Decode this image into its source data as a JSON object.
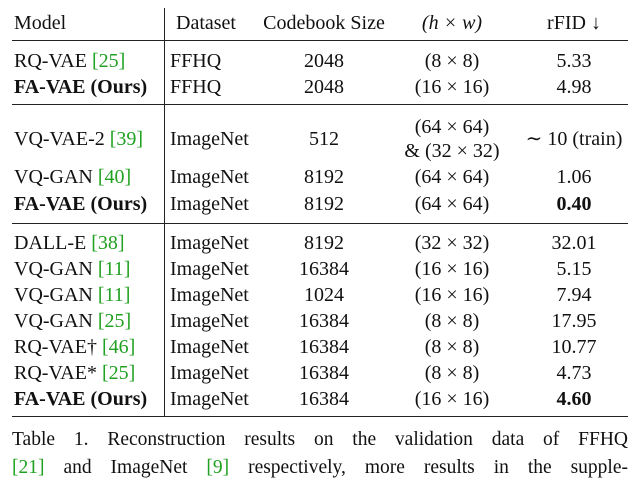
{
  "header": {
    "model": "Model",
    "dataset": "Dataset",
    "codebook": "Codebook Size",
    "hw": "(h × w)",
    "rfid": "rFID ↓"
  },
  "groups": [
    {
      "rows": [
        {
          "model": "RQ-VAE",
          "cite": "[25]",
          "bold": false,
          "dataset": "FFHQ",
          "codebook": "2048",
          "hw": "(8 × 8)",
          "rfid": "5.33",
          "rfid_bold": false
        },
        {
          "model": "FA-VAE (Ours)",
          "cite": "",
          "bold": true,
          "dataset": "FFHQ",
          "codebook": "2048",
          "hw": "(16 × 16)",
          "rfid": "4.98",
          "rfid_bold": false
        }
      ]
    },
    {
      "rows": [
        {
          "model": "VQ-VAE-2",
          "cite": "[39]",
          "bold": false,
          "dataset": "ImageNet",
          "codebook": "512",
          "hw": "(64 × 64)",
          "hw2": "& (32 × 32)",
          "rfid": "∼ 10 (train)",
          "rfid_bold": false
        },
        {
          "model": "VQ-GAN",
          "cite": "[40]",
          "bold": false,
          "dataset": "ImageNet",
          "codebook": "8192",
          "hw": "(64 × 64)",
          "rfid": "1.06",
          "rfid_bold": false
        },
        {
          "model": "FA-VAE (Ours)",
          "cite": "",
          "bold": true,
          "dataset": "ImageNet",
          "codebook": "8192",
          "hw": "(64 × 64)",
          "rfid": "0.40",
          "rfid_bold": true
        }
      ]
    },
    {
      "rows": [
        {
          "model": "DALL-E",
          "cite": "[38]",
          "bold": false,
          "dataset": "ImageNet",
          "codebook": "8192",
          "hw": "(32 × 32)",
          "rfid": "32.01",
          "rfid_bold": false
        },
        {
          "model": "VQ-GAN",
          "cite": "[11]",
          "bold": false,
          "dataset": "ImageNet",
          "codebook": "16384",
          "hw": "(16 × 16)",
          "rfid": "5.15",
          "rfid_bold": false
        },
        {
          "model": "VQ-GAN",
          "cite": "[11]",
          "bold": false,
          "dataset": "ImageNet",
          "codebook": "1024",
          "hw": "(16 × 16)",
          "rfid": "7.94",
          "rfid_bold": false
        },
        {
          "model": "VQ-GAN",
          "cite": "[25]",
          "bold": false,
          "dataset": "ImageNet",
          "codebook": "16384",
          "hw": "(8 × 8)",
          "rfid": "17.95",
          "rfid_bold": false
        },
        {
          "model": "RQ-VAE†",
          "cite": "[46]",
          "bold": false,
          "dataset": "ImageNet",
          "codebook": "16384",
          "hw": "(8 × 8)",
          "rfid": "10.77",
          "rfid_bold": false
        },
        {
          "model": "RQ-VAE*",
          "cite": "[25]",
          "bold": false,
          "dataset": "ImageNet",
          "codebook": "16384",
          "hw": "(8 × 8)",
          "rfid": "4.73",
          "rfid_bold": false
        },
        {
          "model": "FA-VAE (Ours)",
          "cite": "",
          "bold": true,
          "dataset": "ImageNet",
          "codebook": "16384",
          "hw": "(16 × 16)",
          "rfid": "4.60",
          "rfid_bold": true
        }
      ]
    }
  ],
  "caption": {
    "line1": "Table 1.  Reconstruction results on the validation data of FFHQ",
    "line2_cite1": "[21]",
    "line2_mid": " and ImageNet ",
    "line2_cite2": "[9]",
    "line2_end": " respectively, more results in the supple-"
  }
}
